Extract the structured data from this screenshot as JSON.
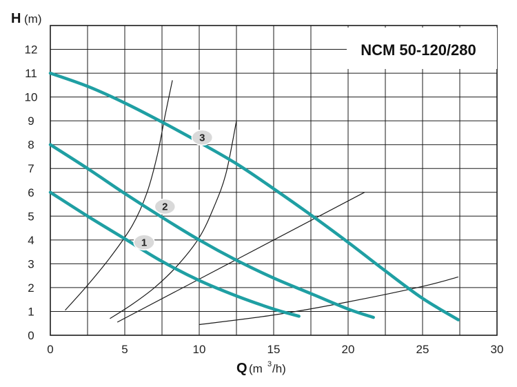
{
  "chart_data": {
    "type": "line",
    "title": "NCM 50-120/280",
    "xaxis": {
      "symbol": "Q",
      "unit_open": "(m",
      "unit_sup": "3",
      "unit_close": "/h)",
      "lim": [
        0,
        30
      ],
      "ticks": [
        0,
        5,
        10,
        15,
        20,
        25,
        30
      ]
    },
    "yaxis": {
      "symbol": "H",
      "unit": "(m)",
      "lim": [
        0,
        13
      ],
      "ticks": [
        0,
        1,
        2,
        3,
        4,
        5,
        6,
        7,
        8,
        9,
        10,
        11,
        12
      ]
    },
    "grid": true,
    "series": [
      {
        "name": "1",
        "kind": "pump",
        "points": [
          [
            0,
            6
          ],
          [
            2.5,
            5.0
          ],
          [
            5,
            4.05
          ],
          [
            7.5,
            3.1
          ],
          [
            10,
            2.3
          ],
          [
            12.5,
            1.65
          ],
          [
            15,
            1.1
          ],
          [
            16.7,
            0.8
          ]
        ],
        "label_at": [
          6.3,
          3.9
        ]
      },
      {
        "name": "2",
        "kind": "pump",
        "points": [
          [
            0,
            8
          ],
          [
            2.5,
            7.0
          ],
          [
            5,
            5.95
          ],
          [
            7.5,
            4.95
          ],
          [
            10,
            4.0
          ],
          [
            12.5,
            3.15
          ],
          [
            15,
            2.4
          ],
          [
            17.5,
            1.75
          ],
          [
            20,
            1.1
          ],
          [
            21.7,
            0.75
          ]
        ],
        "label_at": [
          7.7,
          5.4
        ]
      },
      {
        "name": "3",
        "kind": "pump",
        "points": [
          [
            0,
            11
          ],
          [
            2.5,
            10.45
          ],
          [
            5,
            9.75
          ],
          [
            7.5,
            8.95
          ],
          [
            10,
            8.1
          ],
          [
            12.5,
            7.2
          ],
          [
            15,
            6.15
          ],
          [
            17.5,
            5.05
          ],
          [
            20,
            3.9
          ],
          [
            22.5,
            2.7
          ],
          [
            25,
            1.55
          ],
          [
            27.4,
            0.65
          ]
        ],
        "label_at": [
          10.2,
          8.3
        ]
      },
      {
        "kind": "system",
        "points": [
          [
            1,
            1.05
          ],
          [
            2.5,
            2.1
          ],
          [
            4,
            3.25
          ],
          [
            5.5,
            4.6
          ],
          [
            6.5,
            6.0
          ],
          [
            7.2,
            7.6
          ],
          [
            7.7,
            9.2
          ],
          [
            8.2,
            10.7
          ]
        ]
      },
      {
        "kind": "system",
        "points": [
          [
            4,
            0.7
          ],
          [
            5.5,
            1.3
          ],
          [
            7,
            2.0
          ],
          [
            8.5,
            2.9
          ],
          [
            10,
            4.1
          ],
          [
            11,
            5.4
          ],
          [
            11.8,
            6.8
          ],
          [
            12.5,
            9.0
          ]
        ]
      },
      {
        "kind": "system",
        "points": [
          [
            4.5,
            0.55
          ],
          [
            21.1,
            6.0
          ]
        ]
      },
      {
        "kind": "system",
        "points": [
          [
            10,
            0.45
          ],
          [
            15,
            0.85
          ],
          [
            20,
            1.4
          ],
          [
            25,
            2.05
          ],
          [
            27.4,
            2.45
          ]
        ]
      }
    ],
    "colors": {
      "pump": "#1f9fa3",
      "system": "#1a1a1a",
      "grid": "#1a1a1a",
      "badge": "#d9d9d9"
    }
  }
}
